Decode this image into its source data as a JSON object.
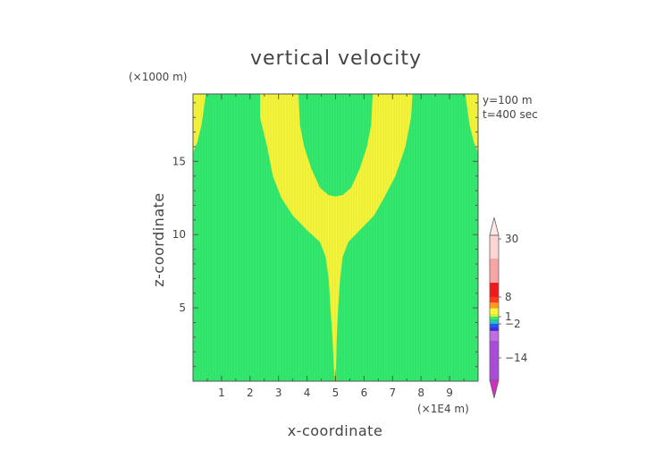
{
  "chart_data": {
    "type": "heatmap",
    "title": "vertical velocity",
    "xlabel": "x-coordinate",
    "ylabel": "z-coordinate",
    "x_scale_label": "(×1E4 m)",
    "y_scale_label": "(×1000 m)",
    "annotations": [
      "y=100 m",
      "t=400 sec"
    ],
    "xlim": [
      0,
      10
    ],
    "ylim": [
      0,
      19.6
    ],
    "x_ticks": [
      "1",
      "2",
      "3",
      "4",
      "5",
      "6",
      "7",
      "8",
      "9"
    ],
    "y_ticks": [
      "5",
      "10",
      "15"
    ],
    "background_color": "#33e96e",
    "regions": [
      {
        "name": "central-plume",
        "color": "#f5f53a",
        "boundary": [
          [
            4.98,
            0.0
          ],
          [
            4.94,
            1.0
          ],
          [
            4.89,
            3.0
          ],
          [
            4.82,
            5.0
          ],
          [
            4.76,
            7.0
          ],
          [
            4.65,
            8.5
          ],
          [
            4.45,
            9.5
          ],
          [
            4.0,
            10.3
          ],
          [
            3.5,
            11.3
          ],
          [
            3.1,
            12.5
          ],
          [
            2.8,
            14.0
          ],
          [
            2.6,
            16.0
          ],
          [
            2.35,
            18.0
          ],
          [
            2.35,
            19.6
          ],
          [
            3.7,
            19.6
          ],
          [
            3.75,
            17.5
          ],
          [
            3.9,
            16.0
          ],
          [
            4.15,
            14.5
          ],
          [
            4.45,
            13.2
          ],
          [
            4.75,
            12.7
          ],
          [
            5.0,
            12.6
          ],
          [
            5.25,
            12.7
          ],
          [
            5.55,
            13.2
          ],
          [
            5.85,
            14.5
          ],
          [
            6.1,
            16.0
          ],
          [
            6.25,
            17.5
          ],
          [
            6.3,
            19.6
          ],
          [
            7.7,
            19.6
          ],
          [
            7.65,
            18.0
          ],
          [
            7.45,
            16.0
          ],
          [
            7.1,
            14.0
          ],
          [
            6.7,
            12.5
          ],
          [
            6.35,
            11.3
          ],
          [
            5.85,
            10.3
          ],
          [
            5.45,
            9.5
          ],
          [
            5.25,
            8.5
          ],
          [
            5.16,
            7.0
          ],
          [
            5.09,
            5.0
          ],
          [
            5.04,
            3.0
          ],
          [
            5.02,
            1.0
          ],
          [
            5.02,
            0.0
          ]
        ]
      },
      {
        "name": "left-edge-lobe",
        "color": "#f5f53a",
        "boundary": [
          [
            0.0,
            15.6
          ],
          [
            0.15,
            16.3
          ],
          [
            0.3,
            17.5
          ],
          [
            0.45,
            19.6
          ],
          [
            0.0,
            19.6
          ]
        ]
      },
      {
        "name": "right-edge-lobe",
        "color": "#f5f53a",
        "boundary": [
          [
            10.0,
            15.6
          ],
          [
            9.85,
            16.3
          ],
          [
            9.7,
            17.5
          ],
          [
            9.55,
            19.6
          ],
          [
            10.0,
            19.6
          ]
        ]
      },
      {
        "name": "surface-spot",
        "color": "#ff8c1a",
        "boundary": [
          [
            4.97,
            0.0
          ],
          [
            5.03,
            0.0
          ],
          [
            5.01,
            0.8
          ],
          [
            4.99,
            0.8
          ]
        ]
      }
    ],
    "colorbar": {
      "labels": [
        "30",
        "8",
        "1",
        "−2",
        "−14"
      ],
      "ticks": [
        {
          "label_index": 0,
          "level": 30
        },
        {
          "label_index": 1,
          "level": 8
        },
        {
          "label_index": 2,
          "level": 1
        },
        {
          "label_index": 3,
          "level": -2
        },
        {
          "label_index": 4,
          "level": -14
        }
      ],
      "bands": [
        {
          "from": -20,
          "to": -8,
          "color": "#a84bd6"
        },
        {
          "from": -8,
          "to": -4.5,
          "color": "#c06de0"
        },
        {
          "from": -4.5,
          "to": -3,
          "color": "#3b2fd8"
        },
        {
          "from": -3,
          "to": -2,
          "color": "#2456f0"
        },
        {
          "from": -2,
          "to": -1,
          "color": "#1fb5e8"
        },
        {
          "from": -1,
          "to": 0,
          "color": "#22d07a"
        },
        {
          "from": 0,
          "to": 1,
          "color": "#33e96e"
        },
        {
          "from": 1,
          "to": 2,
          "color": "#d9ef2a"
        },
        {
          "from": 2,
          "to": 4,
          "color": "#f5f53a"
        },
        {
          "from": 4,
          "to": 6,
          "color": "#ff9a1a"
        },
        {
          "from": 6,
          "to": 8,
          "color": "#ff3a1a"
        },
        {
          "from": 8,
          "to": 12,
          "color": "#f01a1a"
        },
        {
          "from": 12,
          "to": 22,
          "color": "#f8a5a5"
        },
        {
          "from": 22,
          "to": 40,
          "color": "#fcd6d3"
        }
      ],
      "upper_extension_color": "#fde8e6",
      "lower_extension_color": "#d22dbf"
    }
  }
}
